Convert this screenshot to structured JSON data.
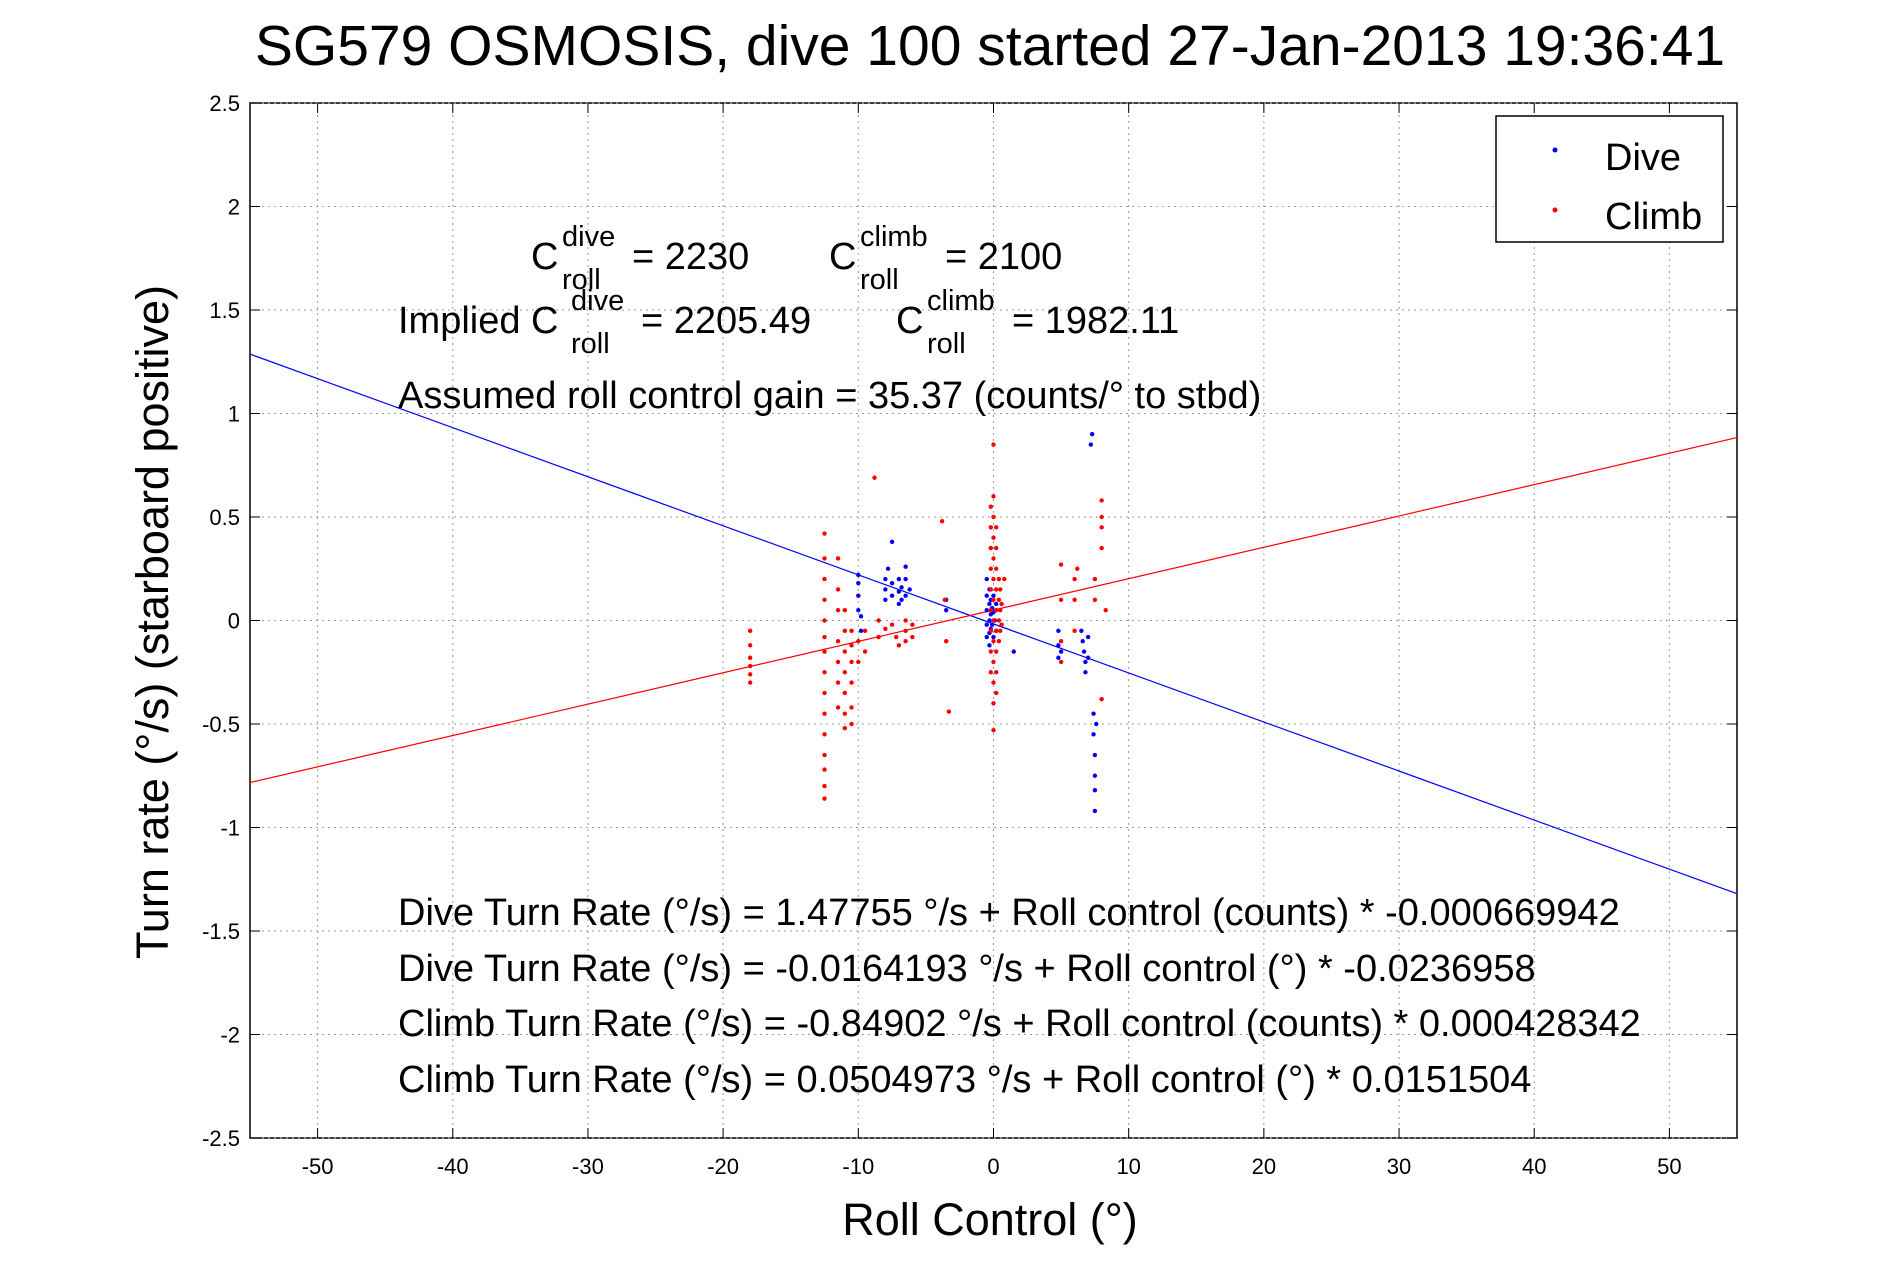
{
  "figure": {
    "title": "SG579 OSMOSIS, dive 100 started 27-Jan-2013 19:36:41",
    "xlabel": "Roll Control (°)",
    "ylabel": "Turn rate (°/s)  (starboard positive)"
  },
  "annotations": {
    "c_symbol": "C",
    "sub_roll": "roll",
    "sup_dive": "dive",
    "sup_climb": "climb",
    "c_dive_value": "= 2230",
    "c_climb_value": "= 2100",
    "implied_prefix": "Implied C",
    "implied_dive_value": "= 2205.49",
    "implied_climb_value": "= 1982.11",
    "gain_line": "Assumed roll control gain = 35.37 (counts/° to stbd)",
    "fit_dive_counts": "Dive Turn Rate (°/s) = 1.47755 °/s + Roll control (counts) * -0.000669942",
    "fit_dive_deg": "Dive Turn Rate (°/s) = -0.0164193 °/s + Roll control (°) * -0.0236958",
    "fit_climb_counts": "Climb Turn Rate (°/s) = -0.84902 °/s + Roll control (counts) * 0.000428342",
    "fit_climb_deg": "Climb Turn Rate (°/s) = 0.0504973 °/s + Roll control (°) * 0.0151504"
  },
  "colors": {
    "dive": "#0000ff",
    "climb": "#ff0000",
    "grid": "#9a9a9a"
  },
  "chart_data": {
    "type": "scatter",
    "xlim": [
      -55,
      55
    ],
    "ylim": [
      -2.5,
      2.5
    ],
    "xticks": [
      -50,
      -40,
      -30,
      -20,
      -10,
      0,
      10,
      20,
      30,
      40,
      50
    ],
    "yticks": [
      -2.5,
      -2,
      -1.5,
      -1,
      -0.5,
      0,
      0.5,
      1,
      1.5,
      2,
      2.5
    ],
    "grid": true,
    "legend_position": "top-right",
    "series": [
      {
        "name": "Dive",
        "color": "#0000ff",
        "points": [
          [
            -10,
            0.05
          ],
          [
            -10,
            0.12
          ],
          [
            -10,
            0.18
          ],
          [
            -10,
            0.22
          ],
          [
            -9.8,
            -0.05
          ],
          [
            -9.8,
            0.02
          ],
          [
            -8,
            0.1
          ],
          [
            -8,
            0.15
          ],
          [
            -8,
            0.2
          ],
          [
            -7.8,
            0.25
          ],
          [
            -7.5,
            0.12
          ],
          [
            -7.5,
            0.18
          ],
          [
            -7.5,
            0.38
          ],
          [
            -7,
            0.08
          ],
          [
            -7,
            0.14
          ],
          [
            -7,
            0.2
          ],
          [
            -6.8,
            0.1
          ],
          [
            -6.8,
            0.16
          ],
          [
            -6.5,
            0.12
          ],
          [
            -6.5,
            0.2
          ],
          [
            -6.5,
            0.26
          ],
          [
            -6.2,
            0.15
          ],
          [
            -3.5,
            0.05
          ],
          [
            -3.5,
            0.1
          ],
          [
            -0.5,
            0.2
          ],
          [
            -0.5,
            0.12
          ],
          [
            -0.5,
            0.05
          ],
          [
            -0.5,
            -0.02
          ],
          [
            -0.5,
            -0.08
          ],
          [
            -0.3,
            0.15
          ],
          [
            -0.3,
            0.08
          ],
          [
            -0.3,
            0.0
          ],
          [
            -0.3,
            -0.06
          ],
          [
            -0.3,
            -0.12
          ],
          [
            -0.2,
            0.1
          ],
          [
            -0.2,
            0.03
          ],
          [
            -0.2,
            -0.04
          ],
          [
            -0.1,
            0.06
          ],
          [
            -0.1,
            -0.02
          ],
          [
            0,
            0.04
          ],
          [
            0,
            -0.08
          ],
          [
            0,
            0.12
          ],
          [
            0.1,
            0.0
          ],
          [
            0.2,
            0.08
          ],
          [
            0.2,
            -0.05
          ],
          [
            1.5,
            -0.15
          ],
          [
            4.8,
            -0.05
          ],
          [
            4.8,
            -0.12
          ],
          [
            4.8,
            -0.18
          ],
          [
            5,
            -0.15
          ],
          [
            6.5,
            -0.05
          ],
          [
            6.6,
            -0.1
          ],
          [
            6.7,
            -0.15
          ],
          [
            6.8,
            -0.2
          ],
          [
            6.8,
            -0.25
          ],
          [
            7,
            -0.08
          ],
          [
            7,
            -0.18
          ],
          [
            7.2,
            0.85
          ],
          [
            7.3,
            0.9
          ],
          [
            7.4,
            -0.45
          ],
          [
            7.4,
            -0.55
          ],
          [
            7.5,
            -0.65
          ],
          [
            7.5,
            -0.75
          ],
          [
            7.5,
            -0.82
          ],
          [
            7.5,
            -0.92
          ],
          [
            7.6,
            -0.5
          ]
        ],
        "fit": {
          "slope": -0.0236958,
          "intercept": -0.0164193
        }
      },
      {
        "name": "Climb",
        "color": "#ff0000",
        "points": [
          [
            -18,
            -0.05
          ],
          [
            -18,
            -0.12
          ],
          [
            -18,
            -0.18
          ],
          [
            -18,
            -0.22
          ],
          [
            -18,
            -0.26
          ],
          [
            -18,
            -0.3
          ],
          [
            -12.5,
            0.42
          ],
          [
            -12.5,
            0.3
          ],
          [
            -12.5,
            0.2
          ],
          [
            -12.5,
            0.1
          ],
          [
            -12.5,
            0.0
          ],
          [
            -12.5,
            -0.08
          ],
          [
            -12.5,
            -0.15
          ],
          [
            -12.5,
            -0.25
          ],
          [
            -12.5,
            -0.35
          ],
          [
            -12.5,
            -0.45
          ],
          [
            -12.5,
            -0.55
          ],
          [
            -12.5,
            -0.65
          ],
          [
            -12.5,
            -0.72
          ],
          [
            -12.5,
            -0.8
          ],
          [
            -12.5,
            -0.86
          ],
          [
            -11.5,
            0.3
          ],
          [
            -11.5,
            0.15
          ],
          [
            -11.5,
            0.05
          ],
          [
            -11.5,
            -0.1
          ],
          [
            -11.5,
            -0.2
          ],
          [
            -11.5,
            -0.3
          ],
          [
            -11.5,
            -0.42
          ],
          [
            -11,
            0.05
          ],
          [
            -11,
            -0.05
          ],
          [
            -11,
            -0.15
          ],
          [
            -11,
            -0.25
          ],
          [
            -11,
            -0.35
          ],
          [
            -11,
            -0.45
          ],
          [
            -11,
            -0.52
          ],
          [
            -10.5,
            -0.05
          ],
          [
            -10.5,
            -0.12
          ],
          [
            -10.5,
            -0.2
          ],
          [
            -10.5,
            -0.3
          ],
          [
            -10.5,
            -0.42
          ],
          [
            -10.5,
            -0.5
          ],
          [
            -10,
            -0.1
          ],
          [
            -10,
            -0.2
          ],
          [
            -9.5,
            -0.05
          ],
          [
            -9.5,
            -0.15
          ],
          [
            -8.8,
            0.69
          ],
          [
            -8.5,
            0.0
          ],
          [
            -8.5,
            -0.08
          ],
          [
            -8,
            -0.04
          ],
          [
            -7.5,
            -0.02
          ],
          [
            -7.2,
            -0.08
          ],
          [
            -7,
            -0.12
          ],
          [
            -6.5,
            0.0
          ],
          [
            -6.5,
            -0.05
          ],
          [
            -6.5,
            -0.1
          ],
          [
            -6,
            -0.02
          ],
          [
            -6,
            -0.08
          ],
          [
            -3.8,
            0.48
          ],
          [
            -3.6,
            0.1
          ],
          [
            -3.5,
            -0.1
          ],
          [
            -3.3,
            -0.44
          ],
          [
            -0.2,
            0.55
          ],
          [
            -0.2,
            0.45
          ],
          [
            -0.2,
            0.35
          ],
          [
            -0.2,
            0.25
          ],
          [
            -0.2,
            0.15
          ],
          [
            -0.2,
            0.05
          ],
          [
            -0.2,
            -0.05
          ],
          [
            -0.2,
            -0.15
          ],
          [
            -0.2,
            -0.25
          ],
          [
            0,
            0.85
          ],
          [
            0,
            0.6
          ],
          [
            0,
            0.5
          ],
          [
            0,
            0.4
          ],
          [
            0,
            0.3
          ],
          [
            0,
            0.2
          ],
          [
            0,
            0.1
          ],
          [
            0,
            0.0
          ],
          [
            0,
            -0.1
          ],
          [
            0,
            -0.2
          ],
          [
            0,
            -0.3
          ],
          [
            0,
            -0.4
          ],
          [
            0,
            -0.53
          ],
          [
            0.2,
            0.45
          ],
          [
            0.2,
            0.35
          ],
          [
            0.2,
            0.25
          ],
          [
            0.2,
            0.15
          ],
          [
            0.2,
            0.05
          ],
          [
            0.2,
            -0.05
          ],
          [
            0.2,
            -0.15
          ],
          [
            0.2,
            -0.25
          ],
          [
            0.2,
            -0.35
          ],
          [
            0.4,
            0.2
          ],
          [
            0.4,
            0.1
          ],
          [
            0.4,
            0.0
          ],
          [
            0.4,
            -0.1
          ],
          [
            0.5,
            0.15
          ],
          [
            0.5,
            0.05
          ],
          [
            0.5,
            -0.05
          ],
          [
            0.6,
            0.08
          ],
          [
            0.6,
            -0.02
          ],
          [
            0.8,
            0.2
          ],
          [
            5,
            0.27
          ],
          [
            5,
            0.1
          ],
          [
            5,
            -0.1
          ],
          [
            5,
            -0.2
          ],
          [
            6,
            0.2
          ],
          [
            6,
            0.1
          ],
          [
            6,
            -0.05
          ],
          [
            6.2,
            0.25
          ],
          [
            7.5,
            0.2
          ],
          [
            7.5,
            0.1
          ],
          [
            8,
            0.58
          ],
          [
            8,
            0.5
          ],
          [
            8,
            0.45
          ],
          [
            8,
            0.35
          ],
          [
            8,
            -0.38
          ],
          [
            8.3,
            0.05
          ]
        ],
        "fit": {
          "slope": 0.0151504,
          "intercept": 0.0504973
        }
      }
    ]
  }
}
